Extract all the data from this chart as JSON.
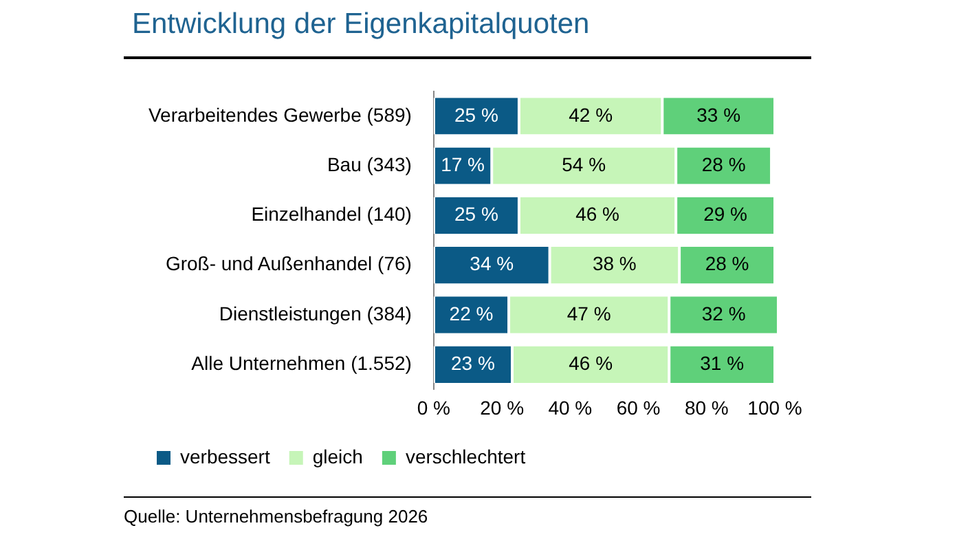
{
  "chart_data": {
    "type": "bar",
    "orientation": "horizontal",
    "stacked": true,
    "title": "Entwicklung der Eigenkapitalquoten",
    "categories": [
      "Verarbeitendes Gewerbe (589)",
      "Bau (343)",
      "Einzelhandel (140)",
      "Groß- und Außenhandel (76)",
      "Dienstleistungen (384)",
      "Alle Unternehmen (1.552)"
    ],
    "series": [
      {
        "name": "verbessert",
        "color": "#0b5a86",
        "values": [
          25,
          17,
          25,
          34,
          22,
          23
        ],
        "value_labels": [
          "25 %",
          "17 %",
          "25 %",
          "34 %",
          "22 %",
          "23 %"
        ]
      },
      {
        "name": "gleich",
        "color": "#c6f5b8",
        "values": [
          42,
          54,
          46,
          38,
          47,
          46
        ],
        "value_labels": [
          "42 %",
          "54 %",
          "46 %",
          "38 %",
          "47 %",
          "46 %"
        ]
      },
      {
        "name": "verschlechtert",
        "color": "#5fd07a",
        "values": [
          33,
          28,
          29,
          28,
          32,
          31
        ],
        "value_labels": [
          "33 %",
          "28 %",
          "29 %",
          "28 %",
          "32 %",
          "31 %"
        ]
      }
    ],
    "xlim": [
      0,
      101
    ],
    "xticks": [
      {
        "value": 0,
        "label": "0 %"
      },
      {
        "value": 20,
        "label": "20 %"
      },
      {
        "value": 40,
        "label": "40 %"
      },
      {
        "value": 60,
        "label": "60 %"
      },
      {
        "value": 80,
        "label": "80 %"
      },
      {
        "value": 100,
        "label": "100 %"
      }
    ],
    "legend": "bottom",
    "annotations": [
      "Quelle: Unternehmensbefragung 2026"
    ]
  }
}
